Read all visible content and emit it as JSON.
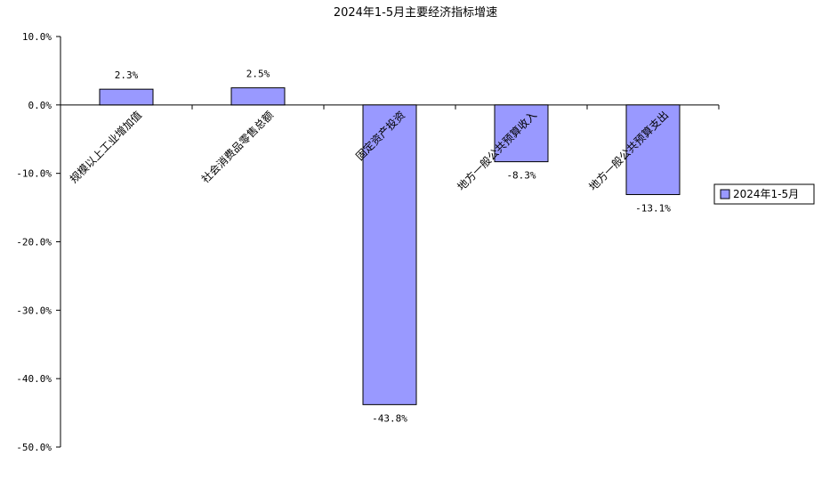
{
  "chart_data": {
    "type": "bar",
    "title": "2024年1-5月主要经济指标增速",
    "categories": [
      "规模以上工业增加值",
      "社会消费品零售总额",
      "固定资产投资",
      "地方一般公共预算收入",
      "地方一般公共预算支出"
    ],
    "series": [
      {
        "name": "2024年1-5月",
        "values": [
          2.3,
          2.5,
          -43.8,
          -8.3,
          -13.1
        ],
        "color": "#9999ff"
      }
    ],
    "data_labels": [
      "2.3%",
      "2.5%",
      "-43.8%",
      "-8.3%",
      "-13.1%"
    ],
    "ylim": [
      -50,
      10
    ],
    "yticks": [
      10,
      0,
      -10,
      -20,
      -30,
      -40,
      -50
    ],
    "ytick_labels": [
      "10.0%",
      "0.0%",
      "-10.0%",
      "-20.0%",
      "-30.0%",
      "-40.0%",
      "-50.0%"
    ],
    "xlabel": "",
    "ylabel": "",
    "grid": false,
    "legend_position": "right"
  }
}
